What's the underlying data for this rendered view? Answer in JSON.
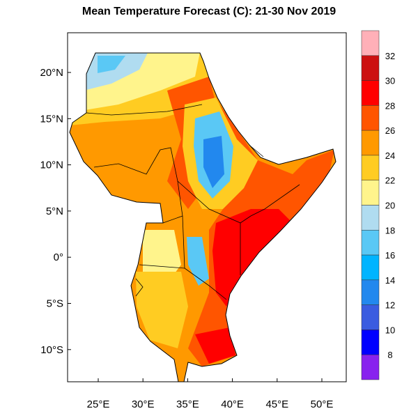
{
  "title": "Mean Temperature Forecast (C):  21-30 Nov 2019",
  "map": {
    "lon_ticks": [
      "25°E",
      "30°E",
      "35°E",
      "40°E",
      "45°E",
      "50°E"
    ],
    "lat_ticks": [
      "20°N",
      "15°N",
      "10°N",
      "5°N",
      "0°",
      "5°S",
      "10°S"
    ],
    "lon_range": [
      21.6,
      52.7
    ],
    "lat_range": [
      -13.5,
      24.3
    ]
  },
  "colorbar": {
    "labels": [
      "32",
      "30",
      "28",
      "26",
      "24",
      "22",
      "20",
      "18",
      "16",
      "14",
      "12",
      "10",
      "8"
    ],
    "colors": [
      "#ffb0b8",
      "#cc1111",
      "#ff0000",
      "#ff5500",
      "#ff9900",
      "#ffcc22",
      "#fff48c",
      "#b0dcf0",
      "#5ac8f5",
      "#00b4ff",
      "#2288ee",
      "#3a5ce0",
      "#0000ff",
      "#8822ee"
    ]
  }
}
